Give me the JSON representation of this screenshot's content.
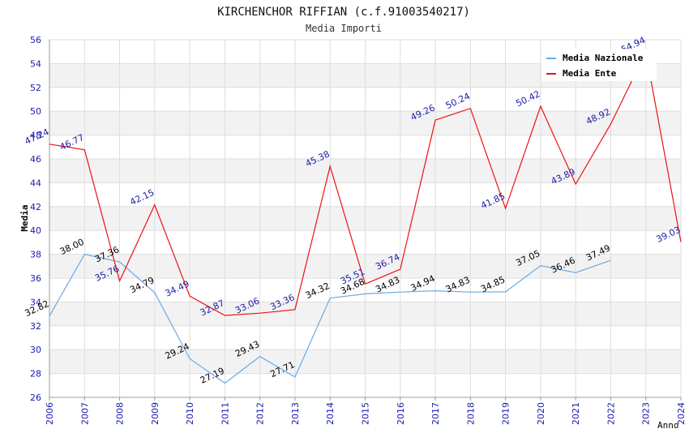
{
  "chart_data": {
    "type": "line",
    "title": "KIRCHENCHOR RIFFIAN (c.f.91003540217)",
    "subtitle": "Media Importi",
    "xlabel": "Anno",
    "ylabel": "Media",
    "ylim": [
      26,
      56
    ],
    "yticks": [
      "26",
      "28",
      "30",
      "32",
      "34",
      "36",
      "38",
      "40",
      "42",
      "44",
      "46",
      "48",
      "50",
      "52",
      "54",
      "56"
    ],
    "categories": [
      "2006",
      "2007",
      "2008",
      "2009",
      "2010",
      "2011",
      "2012",
      "2013",
      "2014",
      "2015",
      "2016",
      "2017",
      "2018",
      "2019",
      "2020",
      "2021",
      "2022",
      "2023",
      "2024"
    ],
    "legend_position": "top-right",
    "series": [
      {
        "name": "Media Nazionale",
        "color": "#6aaae8",
        "label_color": "#000000",
        "values": [
          32.82,
          38.0,
          37.36,
          34.79,
          29.24,
          27.19,
          29.43,
          27.71,
          34.32,
          34.68,
          34.83,
          34.94,
          34.83,
          34.85,
          37.05,
          36.46,
          37.49,
          null,
          null
        ],
        "labels": [
          "32.82",
          "38.00",
          "37.36",
          "34.79",
          "29.24",
          "27.19",
          "29.43",
          "27.71",
          "34.32",
          "34.68",
          "34.83",
          "34.94",
          "34.83",
          "34.85",
          "37.05",
          "36.46",
          "37.49",
          "",
          ""
        ]
      },
      {
        "name": "Media Ente",
        "color": "#ee1111",
        "label_color": "#1a1aaa",
        "values": [
          47.24,
          46.77,
          35.76,
          42.15,
          34.49,
          32.87,
          33.06,
          33.36,
          45.38,
          35.51,
          36.74,
          49.26,
          50.24,
          41.85,
          50.42,
          43.89,
          48.92,
          54.94,
          39.03
        ],
        "labels": [
          "47.24",
          "46.77",
          "35.76",
          "42.15",
          "34.49",
          "32.87",
          "33.06",
          "33.36",
          "45.38",
          "35.51",
          "36.74",
          "49.26",
          "50.24",
          "41.85",
          "50.42",
          "43.89",
          "48.92",
          "54.94",
          "39.03"
        ]
      }
    ]
  }
}
